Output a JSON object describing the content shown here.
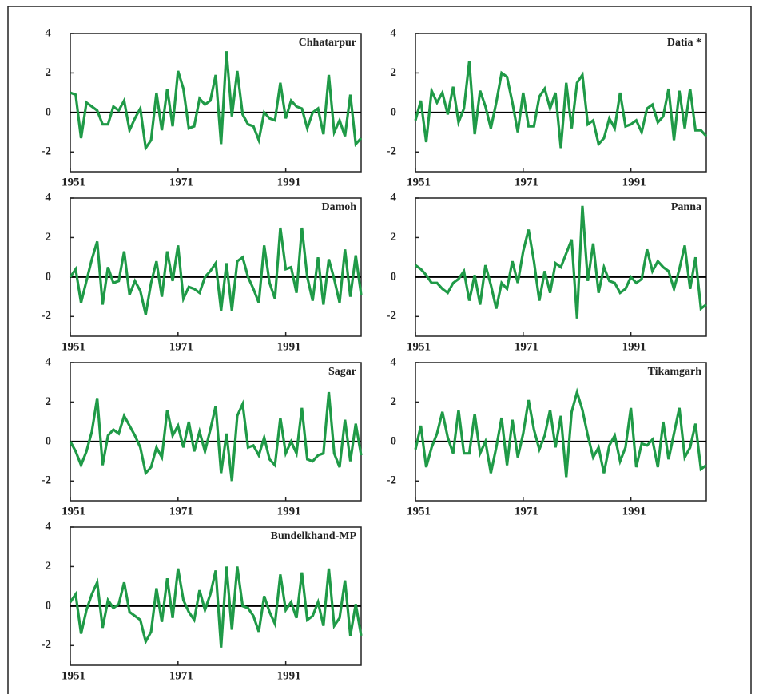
{
  "chart_data": [
    {
      "type": "line",
      "title": "Chhatarpur",
      "color": "#1f9a47",
      "xlim": [
        1951,
        2005
      ],
      "ylim": [
        -3,
        4
      ],
      "xticks": [
        1951,
        1971,
        1991
      ],
      "yticks": [
        -2,
        0,
        2,
        4
      ],
      "x": [
        1951,
        1952,
        1953,
        1954,
        1955,
        1956,
        1957,
        1958,
        1959,
        1960,
        1961,
        1962,
        1963,
        1964,
        1965,
        1966,
        1967,
        1968,
        1969,
        1970,
        1971,
        1972,
        1973,
        1974,
        1975,
        1976,
        1977,
        1978,
        1979,
        1980,
        1981,
        1982,
        1983,
        1984,
        1985,
        1986,
        1987,
        1988,
        1989,
        1990,
        1991,
        1992,
        1993,
        1994,
        1995,
        1996,
        1997,
        1998,
        1999,
        2000,
        2001,
        2002,
        2003,
        2004,
        2005
      ],
      "values": [
        1.0,
        0.9,
        -1.3,
        0.5,
        0.3,
        0.1,
        -0.6,
        -0.6,
        0.3,
        0.1,
        0.6,
        -0.9,
        -0.3,
        0.2,
        -1.8,
        -1.4,
        1.0,
        -0.9,
        1.2,
        -0.7,
        2.1,
        1.2,
        -0.8,
        -0.7,
        0.7,
        0.4,
        0.6,
        1.9,
        -1.6,
        3.1,
        -0.2,
        2.1,
        -0.1,
        -0.6,
        -0.7,
        -1.4,
        0.0,
        -0.3,
        -0.4,
        1.5,
        -0.3,
        0.6,
        0.3,
        0.2,
        -0.8,
        0.0,
        0.2,
        -1.1,
        1.9,
        -1.0,
        -0.4,
        -1.2,
        0.9,
        -1.6,
        -1.3
      ]
    },
    {
      "type": "line",
      "title": "Datia *",
      "color": "#1f9a47",
      "xlim": [
        1951,
        2005
      ],
      "ylim": [
        -3,
        4
      ],
      "xticks": [
        1951,
        1971,
        1991
      ],
      "yticks": [
        -2,
        0,
        2,
        4
      ],
      "x": [
        1951,
        1952,
        1953,
        1954,
        1955,
        1956,
        1957,
        1958,
        1959,
        1960,
        1961,
        1962,
        1963,
        1964,
        1965,
        1966,
        1967,
        1968,
        1969,
        1970,
        1971,
        1972,
        1973,
        1974,
        1975,
        1976,
        1977,
        1978,
        1979,
        1980,
        1981,
        1982,
        1983,
        1984,
        1985,
        1986,
        1987,
        1988,
        1989,
        1990,
        1991,
        1992,
        1993,
        1994,
        1995,
        1996,
        1997,
        1998,
        1999,
        2000,
        2001,
        2002,
        2003,
        2004,
        2005
      ],
      "values": [
        -0.4,
        0.6,
        -1.5,
        1.1,
        0.5,
        1.0,
        -0.1,
        1.3,
        -0.5,
        0.2,
        2.6,
        -1.1,
        1.1,
        0.3,
        -0.8,
        0.5,
        2.0,
        1.8,
        0.5,
        -1.0,
        1.0,
        -0.7,
        -0.7,
        0.8,
        1.2,
        0.2,
        1.0,
        -1.8,
        1.5,
        -0.8,
        1.5,
        1.9,
        -0.6,
        -0.4,
        -1.6,
        -1.3,
        -0.3,
        -0.8,
        1.0,
        -0.7,
        -0.6,
        -0.4,
        -1.0,
        0.2,
        0.4,
        -0.5,
        -0.2,
        1.2,
        -1.4,
        1.1,
        -0.8,
        1.2,
        -0.9,
        -0.9,
        -1.2
      ]
    },
    {
      "type": "line",
      "title": "Damoh",
      "color": "#1f9a47",
      "xlim": [
        1951,
        2005
      ],
      "ylim": [
        -3,
        4
      ],
      "xticks": [
        1951,
        1971,
        1991
      ],
      "yticks": [
        -2,
        0,
        2,
        4
      ],
      "x": [
        1951,
        1952,
        1953,
        1954,
        1955,
        1956,
        1957,
        1958,
        1959,
        1960,
        1961,
        1962,
        1963,
        1964,
        1965,
        1966,
        1967,
        1968,
        1969,
        1970,
        1971,
        1972,
        1973,
        1974,
        1975,
        1976,
        1977,
        1978,
        1979,
        1980,
        1981,
        1982,
        1983,
        1984,
        1985,
        1986,
        1987,
        1988,
        1989,
        1990,
        1991,
        1992,
        1993,
        1994,
        1995,
        1996,
        1997,
        1998,
        1999,
        2000,
        2001,
        2002,
        2003,
        2004,
        2005
      ],
      "values": [
        0.0,
        0.4,
        -1.3,
        -0.2,
        0.9,
        1.8,
        -1.4,
        0.5,
        -0.3,
        -0.2,
        1.3,
        -0.9,
        -0.2,
        -0.7,
        -1.9,
        -0.3,
        0.8,
        -1.0,
        1.3,
        -0.2,
        1.6,
        -1.1,
        -0.5,
        -0.6,
        -0.8,
        0.0,
        0.3,
        0.7,
        -1.7,
        0.7,
        -1.7,
        0.8,
        1.0,
        0.0,
        -0.6,
        -1.3,
        1.6,
        -0.3,
        -1.1,
        2.5,
        0.4,
        0.5,
        -0.8,
        2.5,
        0.0,
        -1.2,
        1.0,
        -1.4,
        0.9,
        -0.1,
        -1.3,
        1.4,
        -1.0,
        1.1,
        -0.9
      ]
    },
    {
      "type": "line",
      "title": "Panna",
      "color": "#1f9a47",
      "xlim": [
        1951,
        2005
      ],
      "ylim": [
        -3,
        4
      ],
      "xticks": [
        1951,
        1971,
        1991
      ],
      "yticks": [
        -2,
        0,
        2,
        4
      ],
      "x": [
        1951,
        1952,
        1953,
        1954,
        1955,
        1956,
        1957,
        1958,
        1959,
        1960,
        1961,
        1962,
        1963,
        1964,
        1965,
        1966,
        1967,
        1968,
        1969,
        1970,
        1971,
        1972,
        1973,
        1974,
        1975,
        1976,
        1977,
        1978,
        1979,
        1980,
        1981,
        1982,
        1983,
        1984,
        1985,
        1986,
        1987,
        1988,
        1989,
        1990,
        1991,
        1992,
        1993,
        1994,
        1995,
        1996,
        1997,
        1998,
        1999,
        2000,
        2001,
        2002,
        2003,
        2004,
        2005
      ],
      "values": [
        0.6,
        0.4,
        0.1,
        -0.3,
        -0.3,
        -0.6,
        -0.8,
        -0.3,
        -0.1,
        0.3,
        -1.2,
        0.1,
        -1.4,
        0.6,
        -0.4,
        -1.6,
        -0.3,
        -0.6,
        0.8,
        -0.3,
        1.3,
        2.4,
        0.8,
        -1.2,
        0.3,
        -0.8,
        0.7,
        0.5,
        1.2,
        1.9,
        -2.1,
        3.6,
        -0.2,
        1.7,
        -0.8,
        0.5,
        -0.2,
        -0.3,
        -0.8,
        -0.6,
        0.0,
        -0.3,
        -0.1,
        1.4,
        0.3,
        0.8,
        0.5,
        0.3,
        -0.6,
        0.4,
        1.6,
        -0.6,
        1.0,
        -1.6,
        -1.4
      ]
    },
    {
      "type": "line",
      "title": "Sagar",
      "color": "#1f9a47",
      "xlim": [
        1951,
        2005
      ],
      "ylim": [
        -3,
        4
      ],
      "xticks": [
        1951,
        1971,
        1991
      ],
      "yticks": [
        -2,
        0,
        2,
        4
      ],
      "x": [
        1951,
        1952,
        1953,
        1954,
        1955,
        1956,
        1957,
        1958,
        1959,
        1960,
        1961,
        1962,
        1963,
        1964,
        1965,
        1966,
        1967,
        1968,
        1969,
        1970,
        1971,
        1972,
        1973,
        1974,
        1975,
        1976,
        1977,
        1978,
        1979,
        1980,
        1981,
        1982,
        1983,
        1984,
        1985,
        1986,
        1987,
        1988,
        1989,
        1990,
        1991,
        1992,
        1993,
        1994,
        1995,
        1996,
        1997,
        1998,
        1999,
        2000,
        2001,
        2002,
        2003,
        2004,
        2005
      ],
      "values": [
        0.0,
        -0.5,
        -1.2,
        -0.5,
        0.5,
        2.2,
        -1.2,
        0.3,
        0.6,
        0.4,
        1.3,
        0.8,
        0.3,
        -0.3,
        -1.6,
        -1.3,
        -0.3,
        -0.8,
        1.6,
        0.3,
        0.8,
        -0.3,
        1.0,
        -0.5,
        0.5,
        -0.5,
        0.6,
        1.8,
        -1.6,
        0.4,
        -2.0,
        1.3,
        1.9,
        -0.3,
        -0.2,
        -0.7,
        0.2,
        -0.9,
        -1.2,
        1.2,
        -0.6,
        0.0,
        -0.6,
        1.7,
        -0.9,
        -1.0,
        -0.7,
        -0.6,
        2.5,
        -0.6,
        -1.3,
        1.1,
        -1.0,
        0.9,
        -0.7
      ]
    },
    {
      "type": "line",
      "title": "Tikamgarh",
      "color": "#1f9a47",
      "xlim": [
        1951,
        2005
      ],
      "ylim": [
        -3,
        4
      ],
      "xticks": [
        1951,
        1971,
        1991
      ],
      "yticks": [
        -2,
        0,
        2,
        4
      ],
      "x": [
        1951,
        1952,
        1953,
        1954,
        1955,
        1956,
        1957,
        1958,
        1959,
        1960,
        1961,
        1962,
        1963,
        1964,
        1965,
        1966,
        1967,
        1968,
        1969,
        1970,
        1971,
        1972,
        1973,
        1974,
        1975,
        1976,
        1977,
        1978,
        1979,
        1980,
        1981,
        1982,
        1983,
        1984,
        1985,
        1986,
        1987,
        1988,
        1989,
        1990,
        1991,
        1992,
        1993,
        1994,
        1995,
        1996,
        1997,
        1998,
        1999,
        2000,
        2001,
        2002,
        2003,
        2004,
        2005
      ],
      "values": [
        -0.4,
        0.8,
        -1.3,
        -0.3,
        0.4,
        1.5,
        0.2,
        -0.6,
        1.6,
        -0.6,
        -0.6,
        1.4,
        -0.6,
        0.0,
        -1.6,
        -0.3,
        1.2,
        -1.2,
        1.1,
        -0.8,
        0.4,
        2.1,
        0.6,
        -0.4,
        0.3,
        1.6,
        -0.3,
        1.3,
        -1.8,
        1.5,
        2.5,
        1.6,
        0.3,
        -0.8,
        -0.3,
        -1.6,
        -0.2,
        0.3,
        -1.0,
        -0.3,
        1.7,
        -1.3,
        -0.1,
        -0.2,
        0.1,
        -1.3,
        1.0,
        -0.9,
        0.4,
        1.7,
        -0.8,
        -0.3,
        0.9,
        -1.4,
        -1.2
      ]
    },
    {
      "type": "line",
      "title": "Bundelkhand-MP",
      "color": "#1f9a47",
      "xlim": [
        1951,
        2005
      ],
      "ylim": [
        -3,
        4
      ],
      "xticks": [
        1951,
        1971,
        1991
      ],
      "yticks": [
        -2,
        0,
        2,
        4
      ],
      "x": [
        1951,
        1952,
        1953,
        1954,
        1955,
        1956,
        1957,
        1958,
        1959,
        1960,
        1961,
        1962,
        1963,
        1964,
        1965,
        1966,
        1967,
        1968,
        1969,
        1970,
        1971,
        1972,
        1973,
        1974,
        1975,
        1976,
        1977,
        1978,
        1979,
        1980,
        1981,
        1982,
        1983,
        1984,
        1985,
        1986,
        1987,
        1988,
        1989,
        1990,
        1991,
        1992,
        1993,
        1994,
        1995,
        1996,
        1997,
        1998,
        1999,
        2000,
        2001,
        2002,
        2003,
        2004,
        2005
      ],
      "values": [
        0.2,
        0.6,
        -1.4,
        -0.2,
        0.6,
        1.2,
        -1.1,
        0.3,
        -0.1,
        0.1,
        1.2,
        -0.3,
        -0.5,
        -0.7,
        -1.8,
        -1.3,
        0.9,
        -0.8,
        1.4,
        -0.6,
        1.9,
        0.3,
        -0.3,
        -0.7,
        0.8,
        -0.2,
        0.6,
        1.8,
        -2.1,
        2.0,
        -1.2,
        2.0,
        0.0,
        -0.1,
        -0.5,
        -1.3,
        0.5,
        -0.3,
        -0.9,
        1.6,
        -0.2,
        0.2,
        -0.6,
        1.7,
        -0.7,
        -0.5,
        0.2,
        -1.0,
        1.9,
        -1.0,
        -0.6,
        1.3,
        -1.5,
        0.1,
        -1.5
      ]
    }
  ]
}
